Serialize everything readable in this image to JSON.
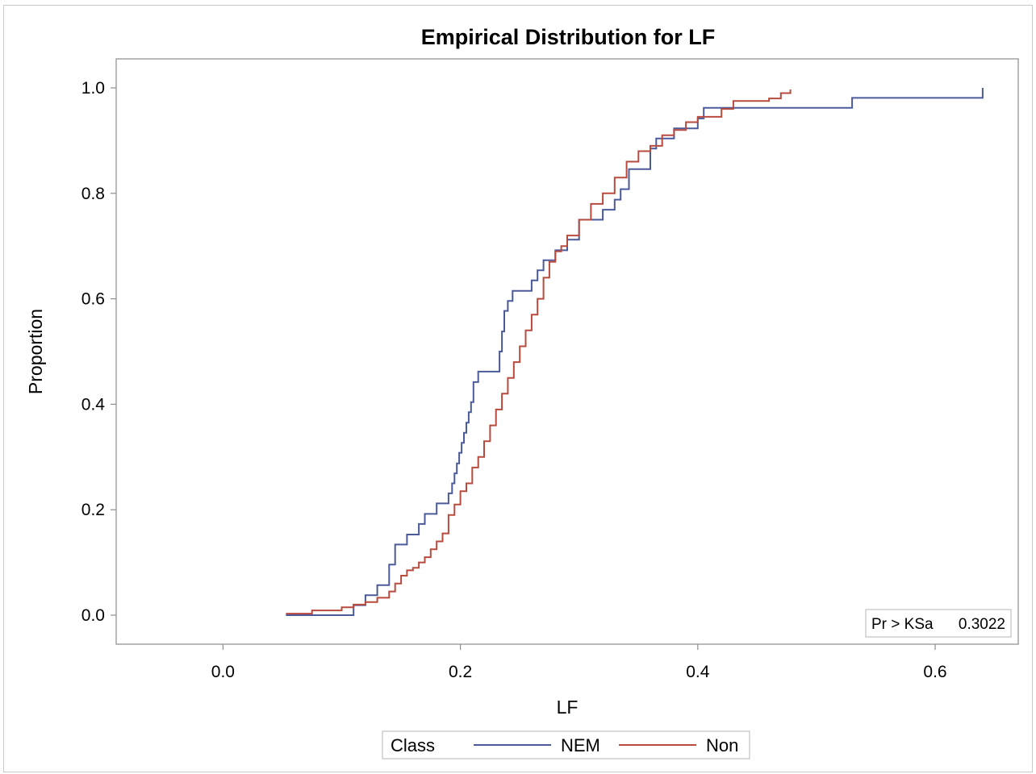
{
  "chart_data": {
    "type": "line",
    "title": "Empirical Distribution for LF",
    "xlabel": "LF",
    "ylabel": "Proportion",
    "xlim": [
      -0.09,
      0.67
    ],
    "ylim": [
      -0.055,
      1.055
    ],
    "x_ticks": [
      0.0,
      0.2,
      0.4,
      0.6
    ],
    "x_tick_labels": [
      "0.0",
      "0.2",
      "0.4",
      "0.6"
    ],
    "y_ticks": [
      0.0,
      0.2,
      0.4,
      0.6,
      0.8,
      1.0
    ],
    "y_tick_labels": [
      "0.0",
      "0.2",
      "0.4",
      "0.6",
      "0.8",
      "1.0"
    ],
    "grid": false,
    "step": true,
    "legend": {
      "title": "Class",
      "position": "bottom-center"
    },
    "inset": {
      "label": "Pr > KSa",
      "value": "0.3022",
      "position": "bottom-right"
    },
    "series": [
      {
        "name": "NEM",
        "color": "#4a5a9a",
        "x": [
          0.053,
          0.11,
          0.12,
          0.13,
          0.14,
          0.145,
          0.155,
          0.165,
          0.17,
          0.18,
          0.19,
          0.193,
          0.195,
          0.197,
          0.199,
          0.201,
          0.203,
          0.205,
          0.207,
          0.209,
          0.211,
          0.215,
          0.225,
          0.233,
          0.235,
          0.237,
          0.24,
          0.244,
          0.25,
          0.26,
          0.265,
          0.27,
          0.28,
          0.29,
          0.3,
          0.32,
          0.33,
          0.335,
          0.342,
          0.36,
          0.365,
          0.38,
          0.4,
          0.405,
          0.53,
          0.64
        ],
        "y": [
          0.0,
          0.019,
          0.038,
          0.057,
          0.096,
          0.134,
          0.153,
          0.173,
          0.192,
          0.212,
          0.231,
          0.25,
          0.269,
          0.288,
          0.308,
          0.327,
          0.346,
          0.365,
          0.385,
          0.404,
          0.442,
          0.462,
          0.462,
          0.5,
          0.538,
          0.577,
          0.596,
          0.615,
          0.615,
          0.635,
          0.654,
          0.673,
          0.692,
          0.712,
          0.75,
          0.769,
          0.788,
          0.808,
          0.846,
          0.885,
          0.904,
          0.923,
          0.942,
          0.962,
          0.981,
          1.0
        ]
      },
      {
        "name": "Non",
        "color": "#b84a3e",
        "x": [
          0.053,
          0.075,
          0.1,
          0.11,
          0.12,
          0.13,
          0.14,
          0.145,
          0.15,
          0.155,
          0.16,
          0.165,
          0.17,
          0.175,
          0.18,
          0.185,
          0.19,
          0.195,
          0.2,
          0.205,
          0.21,
          0.215,
          0.22,
          0.225,
          0.23,
          0.235,
          0.24,
          0.245,
          0.25,
          0.255,
          0.26,
          0.265,
          0.27,
          0.275,
          0.28,
          0.285,
          0.29,
          0.3,
          0.31,
          0.32,
          0.33,
          0.34,
          0.35,
          0.36,
          0.37,
          0.38,
          0.39,
          0.4,
          0.42,
          0.43,
          0.46,
          0.47,
          0.478
        ],
        "y": [
          0.003,
          0.009,
          0.015,
          0.02,
          0.025,
          0.033,
          0.045,
          0.06,
          0.075,
          0.085,
          0.09,
          0.1,
          0.11,
          0.125,
          0.14,
          0.155,
          0.19,
          0.21,
          0.235,
          0.25,
          0.28,
          0.3,
          0.33,
          0.36,
          0.39,
          0.42,
          0.45,
          0.48,
          0.51,
          0.54,
          0.57,
          0.6,
          0.64,
          0.67,
          0.69,
          0.7,
          0.72,
          0.75,
          0.78,
          0.8,
          0.83,
          0.86,
          0.88,
          0.89,
          0.91,
          0.92,
          0.935,
          0.945,
          0.96,
          0.975,
          0.98,
          0.99,
          0.997
        ]
      }
    ]
  }
}
